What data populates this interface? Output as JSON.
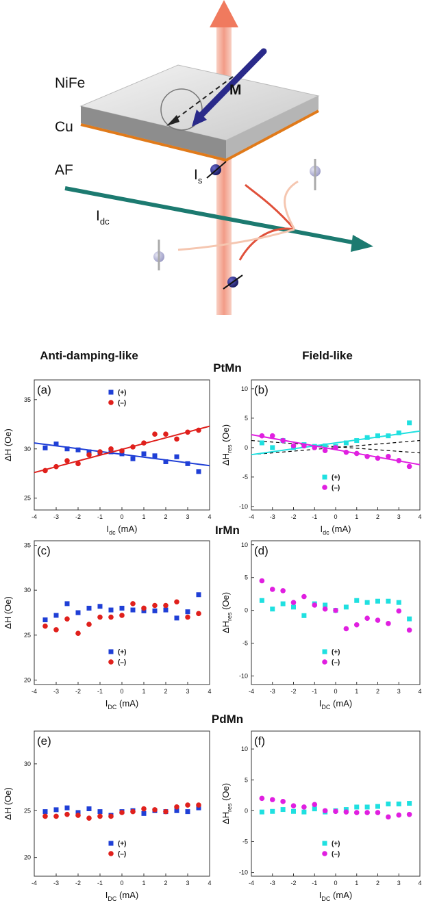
{
  "schematic": {
    "nife": "NiFe",
    "cu": "Cu",
    "af": "AF",
    "m": "M",
    "is": [
      "I",
      "s"
    ],
    "idc": [
      "I",
      "dc"
    ]
  },
  "column_titles": [
    "Anti-damping-like",
    "Field-like"
  ],
  "materials": [
    "PtMn",
    "IrMn",
    "PdMn"
  ],
  "chart_data": [
    {
      "type": "scatter",
      "panel": "(a)",
      "xlabel": [
        "I",
        "dc",
        " (mA)"
      ],
      "ylabel": [
        "ΔH (Oe)"
      ],
      "xlim": [
        -4,
        4
      ],
      "xticks": [
        -4,
        -3,
        -2,
        -1,
        0,
        1,
        2,
        3,
        4
      ],
      "ylim": [
        23.8,
        37
      ],
      "yticks": [
        25,
        30,
        35
      ],
      "legend": "upper center",
      "x": [
        -3.5,
        -3,
        -2.5,
        -2,
        -1.5,
        -1,
        -0.5,
        0,
        0.5,
        1,
        1.5,
        2,
        2.5,
        3,
        3.5
      ],
      "series": [
        {
          "name": "(+)",
          "color": "#1f3fd6",
          "marker": "square",
          "values": [
            30.1,
            30.5,
            30,
            29.9,
            29.7,
            29.6,
            29.7,
            29.5,
            29.0,
            29.5,
            29.3,
            28.7,
            29.2,
            28.5,
            27.7
          ],
          "fit": {
            "x": [
              -4,
              4
            ],
            "values": [
              30.6,
              28.3
            ]
          }
        },
        {
          "name": "(–)",
          "color": "#e0201c",
          "marker": "circle",
          "values": [
            27.8,
            28.2,
            28.8,
            28.5,
            29.4,
            29.7,
            30.0,
            29.8,
            30.2,
            30.6,
            31.5,
            31.5,
            31.0,
            31.7,
            31.9
          ],
          "fit": {
            "x": [
              -4,
              4
            ],
            "values": [
              27.6,
              32.3
            ]
          }
        }
      ]
    },
    {
      "type": "scatter",
      "panel": "(b)",
      "xlabel": [
        "I",
        "dc",
        " (mA)"
      ],
      "ylabel": [
        "ΔH",
        "res",
        " (Oe)"
      ],
      "xlim": [
        -4,
        4
      ],
      "xticks": [
        -4,
        -3,
        -2,
        -1,
        0,
        1,
        2,
        3,
        4
      ],
      "ylim": [
        -10.6,
        11.5
      ],
      "yticks": [
        -10,
        -5,
        0,
        5,
        10
      ],
      "legend": "lower center",
      "x": [
        -3.5,
        -3,
        -2.5,
        -2,
        -1.5,
        -1,
        -0.5,
        0,
        0.5,
        1,
        1.5,
        2,
        2.5,
        3,
        3.5
      ],
      "series": [
        {
          "name": "(+)",
          "color": "#1fe0e0",
          "marker": "square",
          "values": [
            0.8,
            0,
            1.2,
            0,
            0.5,
            0.2,
            0.3,
            0.2,
            0.8,
            1.2,
            1.7,
            2,
            2,
            2.5,
            4.2
          ],
          "fit": {
            "x": [
              -4,
              4
            ],
            "values": [
              -1.2,
              2.8
            ]
          }
        },
        {
          "name": "(–)",
          "color": "#e01fe0",
          "marker": "circle",
          "values": [
            2.0,
            2.0,
            1.2,
            0.3,
            0.3,
            0,
            -0.5,
            0,
            -0.8,
            -1,
            -1.5,
            -1.8,
            -1.5,
            -2.2,
            -3.2
          ],
          "fit": {
            "x": [
              -4,
              4
            ],
            "values": [
              2.2,
              -2.9
            ]
          }
        }
      ],
      "lines": [
        {
          "x": [
            -4,
            4
          ],
          "values": [
            1.2,
            -0.9
          ],
          "color": "#000000",
          "dash": true
        },
        {
          "x": [
            -4,
            4
          ],
          "values": [
            -1.2,
            1.2
          ],
          "color": "#000000",
          "dash": true
        }
      ]
    },
    {
      "type": "scatter",
      "panel": "(c)",
      "xlabel": [
        "I",
        "DC",
        " (mA)"
      ],
      "ylabel": [
        "ΔH (Oe)"
      ],
      "xlim": [
        -4,
        4
      ],
      "xticks": [
        -4,
        -3,
        -2,
        -1,
        0,
        1,
        2,
        3,
        4
      ],
      "ylim": [
        19.5,
        35.5
      ],
      "yticks": [
        20,
        25,
        30,
        35
      ],
      "legend": "lower center",
      "x": [
        -3.5,
        -3,
        -2.5,
        -2,
        -1.5,
        -1,
        -0.5,
        0,
        0.5,
        1,
        1.5,
        2,
        2.5,
        3,
        3.5
      ],
      "series": [
        {
          "name": "(+)",
          "color": "#1f3fd6",
          "marker": "square",
          "values": [
            26.7,
            27.2,
            28.5,
            27.5,
            28,
            28.2,
            27.8,
            28,
            27.8,
            27.7,
            27.7,
            27.8,
            26.9,
            27.6,
            29.5
          ]
        },
        {
          "name": "(–)",
          "color": "#e0201c",
          "marker": "circle",
          "values": [
            26,
            25.6,
            26.8,
            25.2,
            26.2,
            27,
            27,
            27.2,
            28.5,
            28,
            28.3,
            28.3,
            28.7,
            27,
            27.4
          ]
        }
      ]
    },
    {
      "type": "scatter",
      "panel": "(d)",
      "xlabel": [
        "I",
        "DC",
        " (mA)"
      ],
      "ylabel": [
        "ΔH",
        "res",
        " (Oe)"
      ],
      "xlim": [
        -4,
        4
      ],
      "xticks": [
        -4,
        -3,
        -2,
        -1,
        0,
        1,
        2,
        3,
        4
      ],
      "ylim": [
        -11.3,
        10.6
      ],
      "yticks": [
        -10,
        -5,
        0,
        5,
        10
      ],
      "legend": "lower center",
      "x": [
        -3.5,
        -3,
        -2.5,
        -2,
        -1.5,
        -1,
        -0.5,
        0,
        0.5,
        1,
        1.5,
        2,
        2.5,
        3,
        3.5
      ],
      "series": [
        {
          "name": "(+)",
          "color": "#1fe0e0",
          "marker": "square",
          "values": [
            1.5,
            0.2,
            1.0,
            0.5,
            -0.8,
            1,
            0.8,
            0,
            0.5,
            1.5,
            1.2,
            1.4,
            1.4,
            1.2,
            -1.3
          ]
        },
        {
          "name": "(–)",
          "color": "#e01fe0",
          "marker": "circle",
          "values": [
            4.5,
            3.2,
            3,
            1.2,
            2.1,
            0.8,
            0.2,
            0,
            -2.8,
            -2.2,
            -1.2,
            -1.5,
            -2,
            -0.1,
            -3
          ]
        }
      ]
    },
    {
      "type": "scatter",
      "panel": "(e)",
      "xlabel": [
        "I",
        "DC",
        " (mA)"
      ],
      "ylabel": [
        "ΔH (Oe)"
      ],
      "xlim": [
        -4,
        4
      ],
      "xticks": [
        -4,
        -3,
        -2,
        -1,
        0,
        1,
        2,
        3,
        4
      ],
      "ylim": [
        18,
        33.5
      ],
      "yticks": [
        20,
        25,
        30
      ],
      "legend": "lower center",
      "x": [
        -3.5,
        -3,
        -2.5,
        -2,
        -1.5,
        -1,
        -0.5,
        0,
        0.5,
        1,
        1.5,
        2,
        2.5,
        3,
        3.5
      ],
      "series": [
        {
          "name": "(+)",
          "color": "#1f3fd6",
          "marker": "square",
          "values": [
            24.9,
            25.1,
            25.3,
            24.8,
            25.2,
            24.9,
            24.5,
            24.9,
            25,
            24.7,
            25,
            24.9,
            25,
            24.9,
            25.3
          ]
        },
        {
          "name": "(–)",
          "color": "#e0201c",
          "marker": "circle",
          "values": [
            24.4,
            24.4,
            24.6,
            24.5,
            24.2,
            24.4,
            24.4,
            24.8,
            24.9,
            25.2,
            25.1,
            24.9,
            25.4,
            25.6,
            25.6
          ]
        }
      ]
    },
    {
      "type": "scatter",
      "panel": "(f)",
      "xlabel": [
        "I",
        "DC",
        " (mA)"
      ],
      "ylabel": [
        "ΔH",
        "res",
        " (Oe)"
      ],
      "xlim": [
        -4,
        4
      ],
      "xticks": [
        -4,
        -3,
        -2,
        -1,
        0,
        1,
        2,
        3,
        4
      ],
      "ylim": [
        -10.6,
        12.9
      ],
      "yticks": [
        -10,
        -5,
        0,
        5,
        10
      ],
      "legend": "lower center",
      "x": [
        -3.5,
        -3,
        -2.5,
        -2,
        -1.5,
        -1,
        -0.5,
        0,
        0.5,
        1,
        1.5,
        2,
        2.5,
        3,
        3.5
      ],
      "series": [
        {
          "name": "(+)",
          "color": "#1fe0e0",
          "marker": "square",
          "values": [
            -0.2,
            -0.1,
            0.2,
            -0.1,
            -0.2,
            0.3,
            -0.2,
            0,
            0.2,
            0.6,
            0.6,
            0.7,
            1.1,
            1.1,
            1.2
          ]
        },
        {
          "name": "(–)",
          "color": "#e01fe0",
          "marker": "circle",
          "values": [
            2,
            1.8,
            1.5,
            0.8,
            0.6,
            1,
            0,
            -0.1,
            -0.2,
            -0.3,
            -0.3,
            -0.3,
            -1,
            -0.7,
            -0.6
          ]
        }
      ]
    }
  ]
}
